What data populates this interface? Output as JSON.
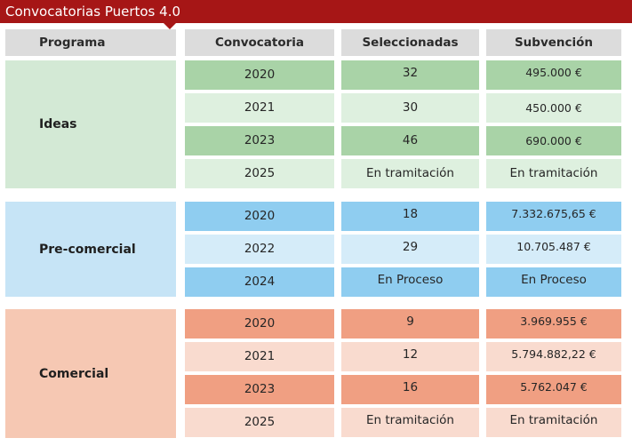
{
  "title": "Convocatorias Puertos 4.0",
  "headers": {
    "programa": "Programa",
    "convocatoria": "Convocatoria",
    "seleccionadas": "Seleccionadas",
    "subvencion": "Subvención"
  },
  "groups": [
    {
      "programa": "Ideas",
      "colors": {
        "program": "#d3e9d5",
        "dark": "#a9d3a7",
        "light": "#def0df"
      },
      "rows": [
        {
          "convocatoria": "2020",
          "seleccionadas": "32",
          "subvencion": "495.000 €"
        },
        {
          "convocatoria": "2021",
          "seleccionadas": "30",
          "subvencion": "450.000 €"
        },
        {
          "convocatoria": "2023",
          "seleccionadas": "46",
          "subvencion": "690.000 €"
        },
        {
          "convocatoria": "2025",
          "seleccionadas": "En tramitación",
          "subvencion": "En tramitación"
        }
      ]
    },
    {
      "programa": "Pre-comercial",
      "colors": {
        "program": "#c6e4f6",
        "dark": "#8fcdf0",
        "light": "#d5ecf9"
      },
      "rows": [
        {
          "convocatoria": "2020",
          "seleccionadas": "18",
          "subvencion": "7.332.675,65 €"
        },
        {
          "convocatoria": "2022",
          "seleccionadas": "29",
          "subvencion": "10.705.487 €"
        },
        {
          "convocatoria": "2024",
          "seleccionadas": "En Proceso",
          "subvencion": "En Proceso"
        }
      ]
    },
    {
      "programa": "Comercial",
      "colors": {
        "program": "#f6c8b3",
        "dark": "#f09f82",
        "light": "#f9dbcf"
      },
      "rows": [
        {
          "convocatoria": "2020",
          "seleccionadas": "9",
          "subvencion": "3.969.955 €"
        },
        {
          "convocatoria": "2021",
          "seleccionadas": "12",
          "subvencion": "5.794.882,22 €"
        },
        {
          "convocatoria": "2023",
          "seleccionadas": "16",
          "subvencion": "5.762.047 €"
        },
        {
          "convocatoria": "2025",
          "seleccionadas": "En tramitación",
          "subvencion": "En tramitación"
        }
      ]
    }
  ],
  "colors": {
    "title_bar": "#a61616",
    "header": "#dcdcdc"
  }
}
